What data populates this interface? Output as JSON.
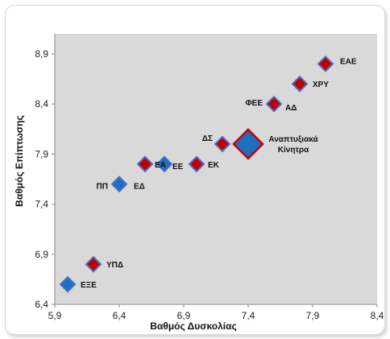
{
  "chart_data": {
    "type": "scatter",
    "xlabel": "Βαθμός Δυσκολίας",
    "ylabel": "Βαθμός Επίπτωσης",
    "xlim": [
      5.9,
      8.4
    ],
    "ylim": [
      6.4,
      9.1
    ],
    "x_ticks": [
      "5,9",
      "6,4",
      "6,9",
      "7,4",
      "7,9",
      "8,4"
    ],
    "y_ticks": [
      "6,4",
      "6,9",
      "7,4",
      "7,9",
      "8,4",
      "8,9"
    ],
    "grid": false,
    "plot_background": "#d9d9d9",
    "marker_fill": "#c00000",
    "marker_outline": "#4a6fc4",
    "highlight_fill": "#1f6fbf",
    "highlight_outline": "#c00000",
    "points": [
      {
        "label": "ΕΞΕ",
        "x": 6.0,
        "y": 6.6,
        "style": "blue"
      },
      {
        "label": "ΥΠΔ",
        "x": 6.2,
        "y": 6.8,
        "style": "red"
      },
      {
        "label": "ΠΠ",
        "x": 6.4,
        "y": 7.6,
        "style": "blue"
      },
      {
        "label": "ΕΔ",
        "x": 6.4,
        "y": 7.6,
        "style": "blue"
      },
      {
        "label": "ΕΑ",
        "x": 6.6,
        "y": 7.8,
        "style": "red"
      },
      {
        "label": "ΕΕ",
        "x": 6.75,
        "y": 7.8,
        "style": "blue"
      },
      {
        "label": "ΕΚ",
        "x": 7.0,
        "y": 7.8,
        "style": "red"
      },
      {
        "label": "ΔΣ",
        "x": 7.2,
        "y": 8.0,
        "style": "red"
      },
      {
        "label": "Αναπτυξιακά Κίνητρα",
        "x": 7.4,
        "y": 8.0,
        "style": "highlight"
      },
      {
        "label": "ΦΕΕ",
        "x": 7.6,
        "y": 8.4,
        "style": "red"
      },
      {
        "label": "ΑΔ",
        "x": 7.6,
        "y": 8.4,
        "style": "red"
      },
      {
        "label": "ΧΡΥ",
        "x": 7.8,
        "y": 8.6,
        "style": "red"
      },
      {
        "label": "ΕΑΕ",
        "x": 8.0,
        "y": 8.8,
        "style": "red"
      }
    ]
  }
}
